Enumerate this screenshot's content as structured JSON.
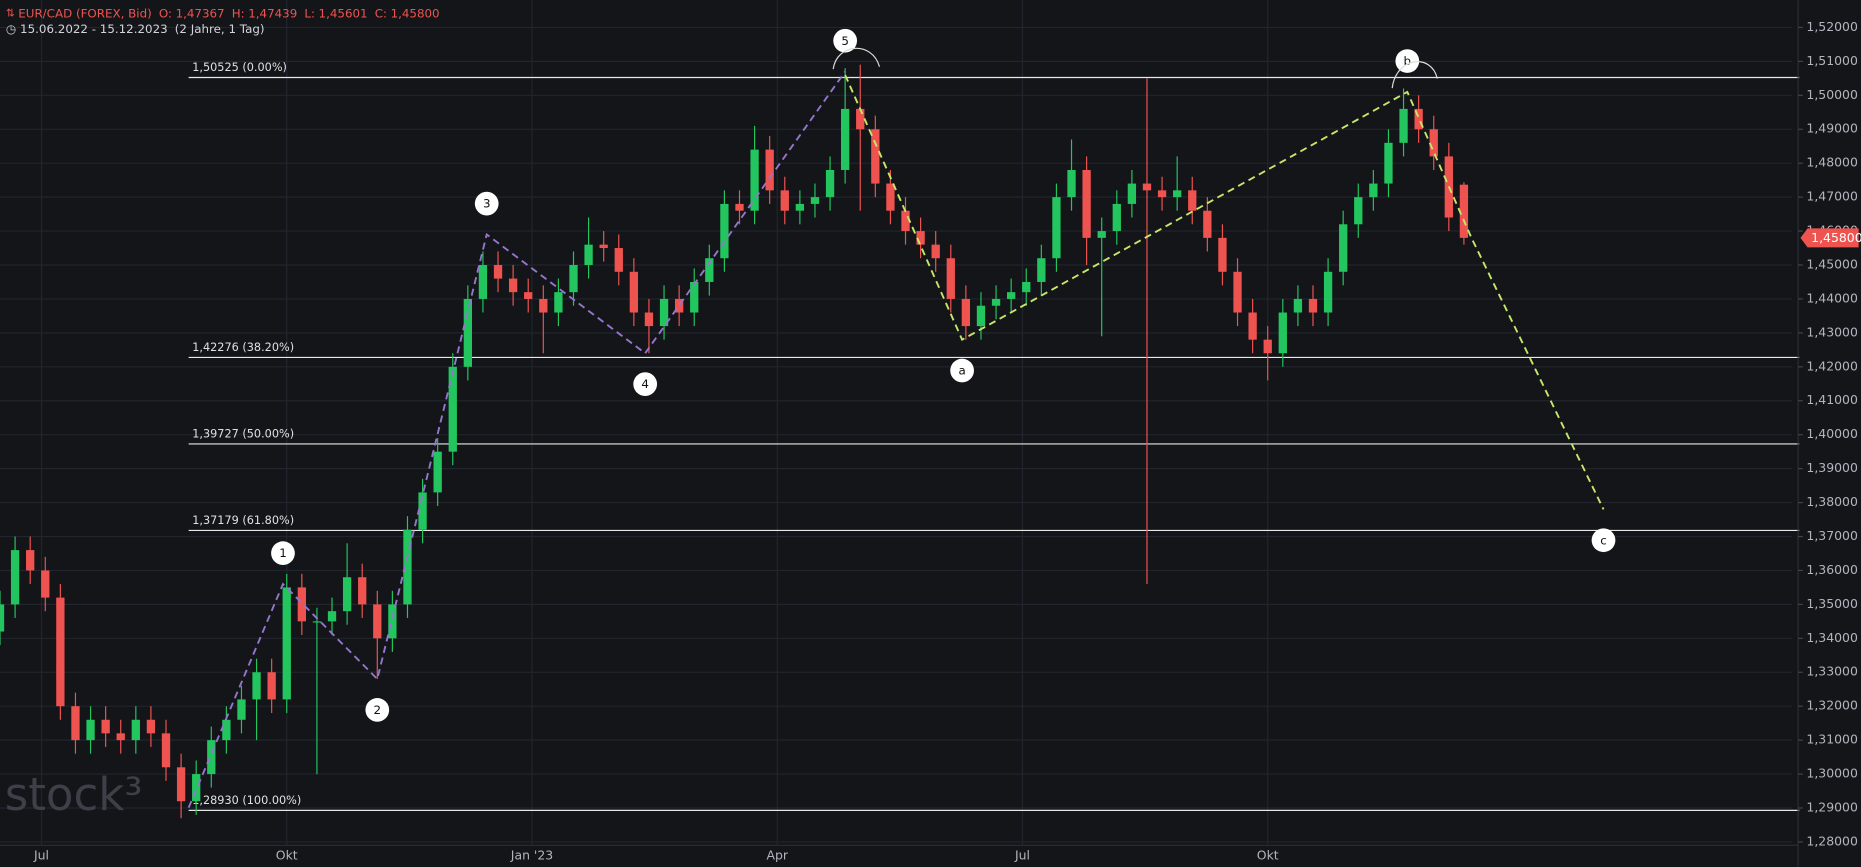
{
  "chart_data": {
    "type": "candlestick",
    "symbol": "EUR/CAD (FOREX, Bid)",
    "ohlc_header": [
      {
        "name": "O:",
        "value": 1.47367,
        "label": "1,47367"
      },
      {
        "name": "H:",
        "value": 1.47439,
        "label": "1,47439"
      },
      {
        "name": "L:",
        "value": 1.45601,
        "label": "1,45601"
      },
      {
        "name": "C:",
        "value": 1.458,
        "label": "1,45800"
      }
    ],
    "period": "15.06.2022 - 15.12.2023",
    "period_note": "(2 Jahre, 1 Tag)",
    "watermark": "stock³",
    "up_color": "#22c55e",
    "down_color": "#ef5350",
    "grid": true,
    "x": [
      0,
      4,
      8,
      12,
      16,
      20,
      24,
      28,
      32,
      36,
      40,
      44,
      48,
      52,
      56,
      60,
      64,
      68,
      72,
      76,
      80,
      84,
      88,
      92,
      96,
      100,
      104,
      108,
      112,
      116,
      120,
      124,
      128,
      132,
      136,
      140,
      144,
      148,
      152,
      156,
      160,
      164,
      168,
      172,
      176,
      180,
      184,
      188,
      192,
      196,
      200,
      204,
      208,
      212,
      216,
      220,
      224,
      228,
      232,
      236,
      240,
      244,
      248,
      252,
      256,
      260,
      264,
      268,
      272,
      276,
      280,
      284,
      288,
      292,
      296,
      300,
      304,
      308,
      312,
      316,
      320,
      324,
      328,
      332,
      336,
      340,
      344,
      348,
      352,
      356,
      360,
      364,
      368,
      372,
      376,
      380,
      384,
      388
    ],
    "open": [
      1.342,
      1.35,
      1.366,
      1.36,
      1.352,
      1.32,
      1.31,
      1.316,
      1.312,
      1.31,
      1.316,
      1.312,
      1.302,
      1.292,
      1.3,
      1.31,
      1.316,
      1.322,
      1.33,
      1.322,
      1.355,
      1.345,
      1.345,
      1.348,
      1.358,
      1.35,
      1.34,
      1.35,
      1.372,
      1.383,
      1.395,
      1.42,
      1.44,
      1.45,
      1.446,
      1.442,
      1.44,
      1.436,
      1.442,
      1.45,
      1.456,
      1.455,
      1.448,
      1.436,
      1.432,
      1.44,
      1.436,
      1.445,
      1.452,
      1.468,
      1.466,
      1.484,
      1.472,
      1.466,
      1.468,
      1.47,
      1.478,
      1.496,
      1.49,
      1.474,
      1.466,
      1.46,
      1.456,
      1.452,
      1.44,
      1.432,
      1.438,
      1.44,
      1.442,
      1.445,
      1.452,
      1.47,
      1.478,
      1.458,
      1.46,
      1.468,
      1.474,
      1.472,
      1.47,
      1.472,
      1.466,
      1.458,
      1.448,
      1.436,
      1.428,
      1.424,
      1.436,
      1.44,
      1.436,
      1.448,
      1.462,
      1.47,
      1.474,
      1.486,
      1.496,
      1.49,
      1.482,
      1.47367
    ],
    "high": [
      1.354,
      1.37,
      1.37,
      1.364,
      1.356,
      1.324,
      1.32,
      1.32,
      1.316,
      1.32,
      1.32,
      1.316,
      1.306,
      1.304,
      1.314,
      1.32,
      1.326,
      1.334,
      1.334,
      1.359,
      1.359,
      1.349,
      1.352,
      1.368,
      1.362,
      1.354,
      1.354,
      1.376,
      1.387,
      1.399,
      1.424,
      1.444,
      1.454,
      1.454,
      1.45,
      1.446,
      1.444,
      1.446,
      1.454,
      1.464,
      1.46,
      1.459,
      1.452,
      1.44,
      1.444,
      1.444,
      1.449,
      1.456,
      1.472,
      1.472,
      1.491,
      1.488,
      1.476,
      1.472,
      1.474,
      1.482,
      1.508,
      1.509,
      1.494,
      1.478,
      1.47,
      1.464,
      1.46,
      1.456,
      1.444,
      1.442,
      1.444,
      1.446,
      1.449,
      1.456,
      1.474,
      1.487,
      1.482,
      1.464,
      1.472,
      1.478,
      1.505,
      1.476,
      1.482,
      1.476,
      1.47,
      1.462,
      1.452,
      1.44,
      1.432,
      1.44,
      1.444,
      1.444,
      1.452,
      1.466,
      1.474,
      1.478,
      1.49,
      1.502,
      1.5,
      1.494,
      1.486,
      1.47439
    ],
    "low": [
      1.338,
      1.346,
      1.356,
      1.348,
      1.316,
      1.306,
      1.306,
      1.308,
      1.306,
      1.306,
      1.308,
      1.298,
      1.287,
      1.288,
      1.296,
      1.306,
      1.312,
      1.31,
      1.318,
      1.318,
      1.341,
      1.3,
      1.341,
      1.344,
      1.346,
      1.328,
      1.336,
      1.346,
      1.368,
      1.379,
      1.391,
      1.416,
      1.436,
      1.442,
      1.438,
      1.436,
      1.424,
      1.432,
      1.438,
      1.446,
      1.451,
      1.444,
      1.432,
      1.424,
      1.428,
      1.432,
      1.432,
      1.441,
      1.448,
      1.462,
      1.462,
      1.468,
      1.462,
      1.462,
      1.464,
      1.466,
      1.474,
      1.466,
      1.47,
      1.462,
      1.456,
      1.452,
      1.448,
      1.436,
      1.428,
      1.428,
      1.434,
      1.436,
      1.438,
      1.441,
      1.448,
      1.466,
      1.45,
      1.429,
      1.456,
      1.464,
      1.356,
      1.466,
      1.466,
      1.462,
      1.454,
      1.444,
      1.432,
      1.424,
      1.416,
      1.42,
      1.432,
      1.432,
      1.432,
      1.444,
      1.458,
      1.466,
      1.47,
      1.482,
      1.486,
      1.478,
      1.46,
      1.45601
    ],
    "close": [
      1.35,
      1.366,
      1.36,
      1.352,
      1.32,
      1.31,
      1.316,
      1.312,
      1.31,
      1.316,
      1.312,
      1.302,
      1.292,
      1.3,
      1.31,
      1.316,
      1.322,
      1.33,
      1.322,
      1.355,
      1.345,
      1.345,
      1.348,
      1.358,
      1.35,
      1.34,
      1.35,
      1.372,
      1.383,
      1.395,
      1.42,
      1.44,
      1.45,
      1.446,
      1.442,
      1.44,
      1.436,
      1.442,
      1.45,
      1.456,
      1.455,
      1.448,
      1.436,
      1.432,
      1.44,
      1.436,
      1.445,
      1.452,
      1.468,
      1.466,
      1.484,
      1.472,
      1.466,
      1.468,
      1.47,
      1.478,
      1.496,
      1.49,
      1.474,
      1.466,
      1.46,
      1.456,
      1.452,
      1.44,
      1.432,
      1.438,
      1.44,
      1.442,
      1.445,
      1.452,
      1.47,
      1.478,
      1.458,
      1.46,
      1.468,
      1.474,
      1.472,
      1.47,
      1.472,
      1.466,
      1.458,
      1.448,
      1.436,
      1.428,
      1.424,
      1.436,
      1.44,
      1.436,
      1.448,
      1.462,
      1.47,
      1.474,
      1.486,
      1.496,
      1.49,
      1.482,
      1.464,
      1.458
    ],
    "xlim": [
      0,
      475
    ],
    "xticks": [
      {
        "value": 11,
        "label": "Jul"
      },
      {
        "value": 76,
        "label": "Okt"
      },
      {
        "value": 141,
        "label": "Jan '23"
      },
      {
        "value": 206,
        "label": "Apr"
      },
      {
        "value": 271,
        "label": "Jul"
      },
      {
        "value": 336,
        "label": "Okt"
      }
    ],
    "ylim": [
      1.279,
      1.528
    ],
    "yticks": [
      {
        "value": 1.28,
        "label": "1,28000"
      },
      {
        "value": 1.29,
        "label": "1,29000"
      },
      {
        "value": 1.3,
        "label": "1,30000"
      },
      {
        "value": 1.31,
        "label": "1,31000"
      },
      {
        "value": 1.32,
        "label": "1,32000"
      },
      {
        "value": 1.33,
        "label": "1,33000"
      },
      {
        "value": 1.34,
        "label": "1,34000"
      },
      {
        "value": 1.35,
        "label": "1,35000"
      },
      {
        "value": 1.36,
        "label": "1,36000"
      },
      {
        "value": 1.37,
        "label": "1,37000"
      },
      {
        "value": 1.38,
        "label": "1,38000"
      },
      {
        "value": 1.39,
        "label": "1,39000"
      },
      {
        "value": 1.4,
        "label": "1,40000"
      },
      {
        "value": 1.41,
        "label": "1,41000"
      },
      {
        "value": 1.42,
        "label": "1,42000"
      },
      {
        "value": 1.43,
        "label": "1,43000"
      },
      {
        "value": 1.44,
        "label": "1,44000"
      },
      {
        "value": 1.45,
        "label": "1,45000"
      },
      {
        "value": 1.46,
        "label": "1,46000"
      },
      {
        "value": 1.47,
        "label": "1,47000"
      },
      {
        "value": 1.48,
        "label": "1,48000"
      },
      {
        "value": 1.49,
        "label": "1,49000"
      },
      {
        "value": 1.5,
        "label": "1,50000"
      },
      {
        "value": 1.51,
        "label": "1,51000"
      },
      {
        "value": 1.52,
        "label": "1,52000"
      }
    ],
    "last_price": {
      "value": 1.458,
      "label": "1,45800"
    },
    "fibonacci": [
      {
        "value": 1.50525,
        "label": "1,50525 (0.00%)"
      },
      {
        "value": 1.42276,
        "label": "1,42276 (38.20%)"
      },
      {
        "value": 1.39727,
        "label": "1,39727 (50.00%)"
      },
      {
        "value": 1.37179,
        "label": "1,37179 (61.80%)"
      },
      {
        "value": 1.2893,
        "label": "1,28930 (100.00%)"
      }
    ],
    "waves": [
      {
        "color": "#9575cd",
        "x": [
          50,
          75,
          100,
          129,
          171,
          224
        ],
        "values": [
          1.2901,
          1.356,
          1.328,
          1.459,
          1.424,
          1.507
        ],
        "labels": [
          null,
          "1",
          "2",
          "3",
          "4",
          "5"
        ]
      },
      {
        "color": "#c6e867",
        "x": [
          224,
          255,
          373,
          390,
          425
        ],
        "values": [
          1.506,
          1.428,
          1.501,
          1.458,
          1.378
        ],
        "labels": [
          null,
          "a",
          "b",
          null,
          "c"
        ]
      }
    ]
  }
}
